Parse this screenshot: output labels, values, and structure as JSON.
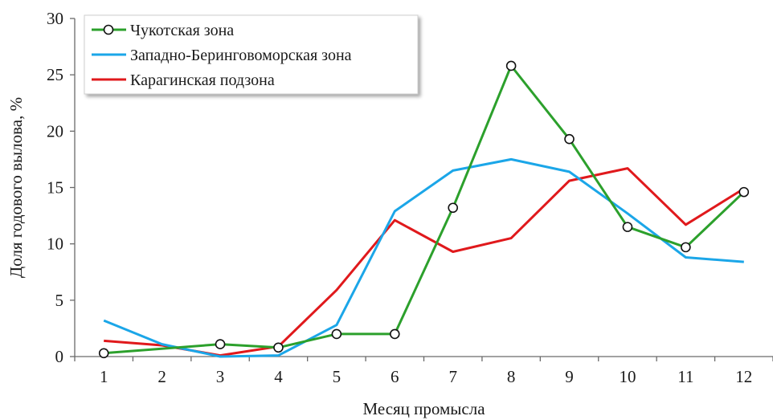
{
  "chart_data": {
    "type": "line",
    "xlabel": "Месяц промысла",
    "ylabel": "Доля годового вылова, %",
    "categories": [
      "1",
      "2",
      "3",
      "4",
      "5",
      "6",
      "7",
      "8",
      "9",
      "10",
      "11",
      "12"
    ],
    "x": [
      1,
      2,
      3,
      4,
      5,
      6,
      7,
      8,
      9,
      10,
      11,
      12
    ],
    "xlim": [
      0.5,
      12.5
    ],
    "ylim": [
      0,
      30
    ],
    "yticks": [
      0,
      5,
      10,
      15,
      20,
      25,
      30
    ],
    "grid": false,
    "legend_position": "top-left",
    "series": [
      {
        "name": "Чукотская зона",
        "color": "#2ca02c",
        "marker": "circle-open",
        "x": [
          1,
          3,
          4,
          5,
          6,
          7,
          8,
          9,
          10,
          11,
          12
        ],
        "values": [
          0.3,
          1.1,
          0.8,
          2.0,
          2.0,
          13.2,
          25.8,
          19.3,
          11.5,
          9.7,
          14.6
        ]
      },
      {
        "name": "Западно-Беринговоморская зона",
        "color": "#1ba6e8",
        "marker": "none",
        "x": [
          1,
          2,
          3,
          4,
          5,
          6,
          7,
          8,
          9,
          10,
          11,
          12
        ],
        "values": [
          3.2,
          1.1,
          0.0,
          0.1,
          2.8,
          12.9,
          16.5,
          17.5,
          16.4,
          12.7,
          8.8,
          8.4
        ]
      },
      {
        "name": "Карагинская подзона",
        "color": "#e0191c",
        "marker": "none",
        "x": [
          1,
          2,
          3,
          4,
          5,
          6,
          7,
          8,
          9,
          10,
          11,
          12
        ],
        "values": [
          1.4,
          1.0,
          0.1,
          0.9,
          5.9,
          12.1,
          9.3,
          10.5,
          15.6,
          16.7,
          11.7,
          14.9
        ]
      }
    ]
  }
}
